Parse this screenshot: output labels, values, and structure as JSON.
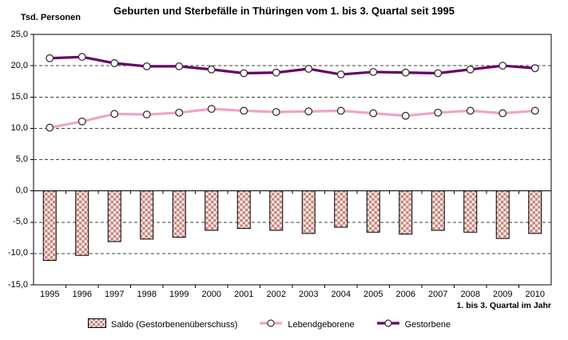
{
  "title": "Geburten und Sterbefälle in Thüringen vom 1. bis 3. Quartal seit 1995",
  "y_axis_title": "Tsd. Personen",
  "x_axis_title": "1. bis 3. Quartal im Jahr",
  "legend": [
    {
      "label": "Saldo (Gestorbenenüberschuss)",
      "swatch": "checker-bar-swatch"
    },
    {
      "label": "Lebendgeborene",
      "swatch": "line-marker-swatch"
    },
    {
      "label": "Gestorbene",
      "swatch": "line-marker-swatch"
    }
  ],
  "colors": {
    "gestorbene_line": "#660066",
    "lebendgeborene_line": "#f0a3c8",
    "marker_fill": "#ffffff",
    "marker_stroke": "#333333",
    "saldo_checker_fg": "#c98181",
    "saldo_checker_bg": "#f9efe2",
    "bar_border": "#000000",
    "gridline": "#404040",
    "axis": "#000000",
    "text": "#000000",
    "background": "#ffffff"
  },
  "chart_data": {
    "type": "bar+line combo",
    "title": "Geburten und Sterbefälle in Thüringen vom 1. bis 3. Quartal seit 1995",
    "xlabel": "1. bis 3. Quartal im Jahr",
    "ylabel": "Tsd. Personen",
    "categories": [
      "1995",
      "1996",
      "1997",
      "1998",
      "1999",
      "2000",
      "2001",
      "2002",
      "2003",
      "2004",
      "2005",
      "2006",
      "2007",
      "2008",
      "2009",
      "2010"
    ],
    "series": [
      {
        "name": "Saldo (Gestorbenenüberschuss)",
        "type": "bar",
        "values": [
          -11.1,
          -10.3,
          -8.1,
          -7.7,
          -7.4,
          -6.3,
          -6.0,
          -6.3,
          -6.8,
          -5.8,
          -6.6,
          -6.9,
          -6.3,
          -6.6,
          -7.6,
          -6.8
        ]
      },
      {
        "name": "Lebendgeborene",
        "type": "line",
        "values": [
          10.1,
          11.1,
          12.3,
          12.2,
          12.5,
          13.1,
          12.8,
          12.6,
          12.7,
          12.8,
          12.4,
          12.0,
          12.5,
          12.8,
          12.4,
          12.8
        ]
      },
      {
        "name": "Gestorbene",
        "type": "line",
        "values": [
          21.2,
          21.4,
          20.4,
          19.9,
          19.9,
          19.4,
          18.8,
          18.9,
          19.5,
          18.6,
          19.0,
          18.9,
          18.8,
          19.4,
          20.0,
          19.6
        ]
      }
    ],
    "ylim": [
      -15,
      25
    ],
    "y_tick_interval": 5,
    "y_tick_labels": [
      "25,0",
      "20,0",
      "15,0",
      "10,0",
      "5,0",
      "0,0",
      "-5,0",
      "-10,0",
      "-15,0"
    ],
    "gridline_values": [
      20,
      15,
      10,
      5,
      -5,
      -10
    ],
    "grid": true,
    "legend_position": "bottom"
  }
}
